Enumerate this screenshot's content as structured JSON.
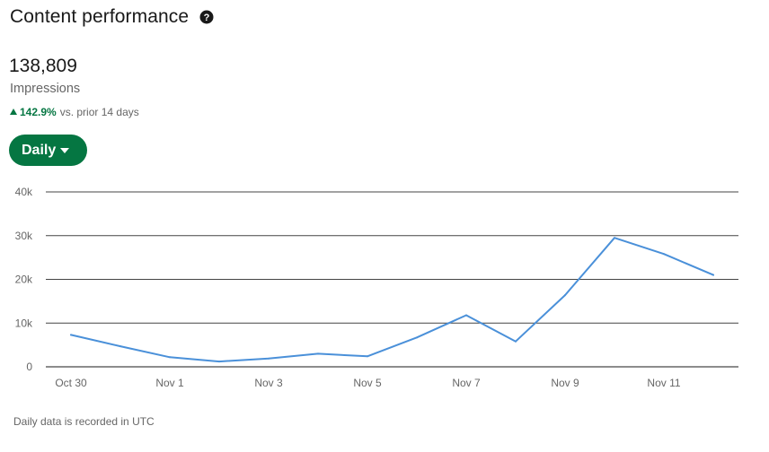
{
  "header": {
    "title": "Content performance",
    "help_icon": "question-circle-icon"
  },
  "metric": {
    "value": "138,809",
    "label": "Impressions",
    "delta_value": "142.9%",
    "delta_text": "vs. prior 14 days",
    "delta_color": "#057642"
  },
  "period_button": {
    "label": "Daily",
    "color": "#057642"
  },
  "footnote": "Daily data is recorded in UTC",
  "chart_data": {
    "type": "line",
    "title": "",
    "xlabel": "",
    "ylabel": "",
    "ylim": [
      0,
      40000
    ],
    "y_ticks": [
      0,
      10000,
      20000,
      30000,
      40000
    ],
    "y_tick_labels": [
      "0",
      "10k",
      "20k",
      "30k",
      "40k"
    ],
    "x": [
      "Oct 30",
      "Oct 31",
      "Nov 1",
      "Nov 2",
      "Nov 3",
      "Nov 4",
      "Nov 5",
      "Nov 6",
      "Nov 7",
      "Nov 8",
      "Nov 9",
      "Nov 10",
      "Nov 11",
      "Nov 12"
    ],
    "x_tick_labels": [
      "Oct 30",
      "Nov 1",
      "Nov 3",
      "Nov 5",
      "Nov 7",
      "Nov 9",
      "Nov 11"
    ],
    "series": [
      {
        "color": "#4a90d9",
        "values": [
          7300,
          4700,
          2200,
          1200,
          1900,
          3000,
          2400,
          6700,
          11800,
          5800,
          16400,
          29500,
          25800,
          21000
        ]
      }
    ],
    "grid": true
  }
}
